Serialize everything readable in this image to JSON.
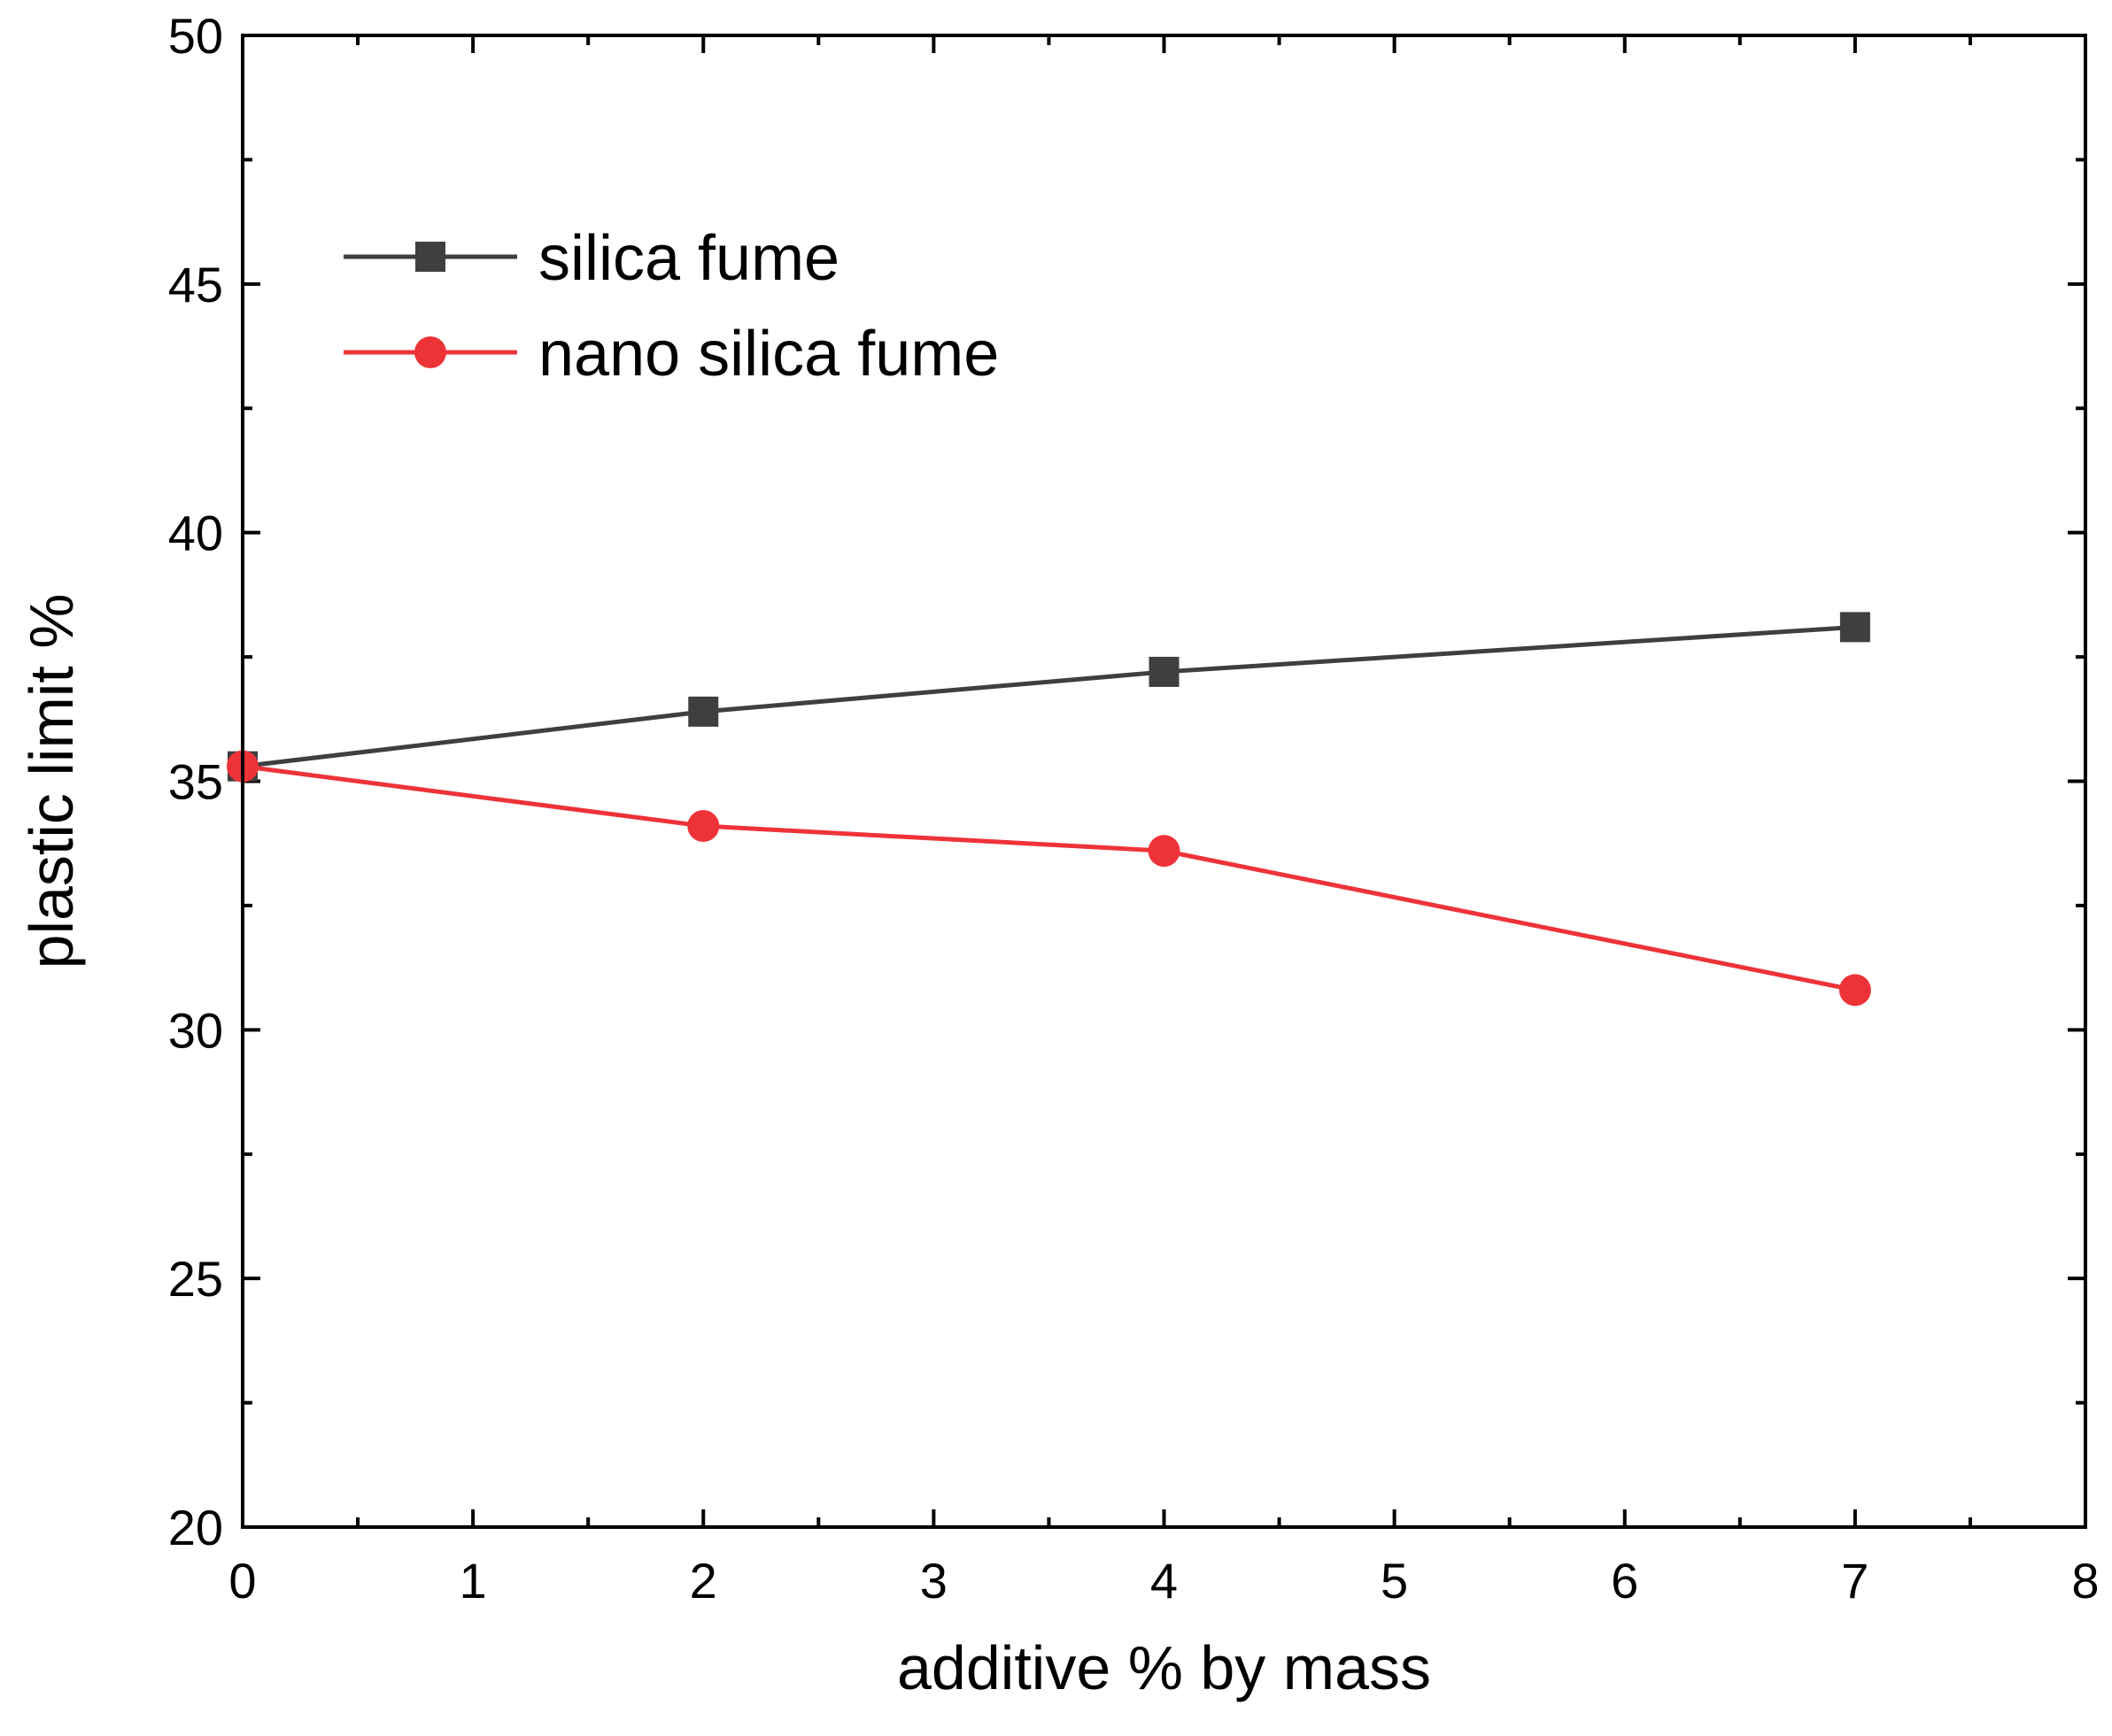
{
  "chart_data": {
    "type": "line",
    "title": "",
    "xlabel": "additive % by mass",
    "ylabel": "plastic limit %",
    "xlim": [
      0,
      8
    ],
    "ylim": [
      20,
      50
    ],
    "x_ticks": [
      0,
      1,
      2,
      3,
      4,
      5,
      6,
      7,
      8
    ],
    "x_tick_labels": [
      "0",
      "1",
      "2",
      "3",
      "4",
      "5",
      "6",
      "7",
      "8"
    ],
    "y_ticks": [
      20,
      25,
      30,
      35,
      40,
      45,
      50
    ],
    "y_tick_labels": [
      "20",
      "25",
      "30",
      "35",
      "40",
      "45",
      "50"
    ],
    "x_minor_step": 0.5,
    "y_minor_step": 2.5,
    "grid": false,
    "legend_position": "top-left",
    "series": [
      {
        "name": "silica fume",
        "marker": "square",
        "color": "#3f3f3f",
        "x": [
          0,
          2,
          4,
          7
        ],
        "values": [
          35.3,
          36.4,
          37.2,
          38.1
        ]
      },
      {
        "name": "nano silica fume",
        "marker": "circle",
        "color": "#ee3338",
        "x": [
          0,
          2,
          4,
          7
        ],
        "values": [
          35.3,
          34.1,
          33.6,
          30.8
        ]
      }
    ]
  }
}
